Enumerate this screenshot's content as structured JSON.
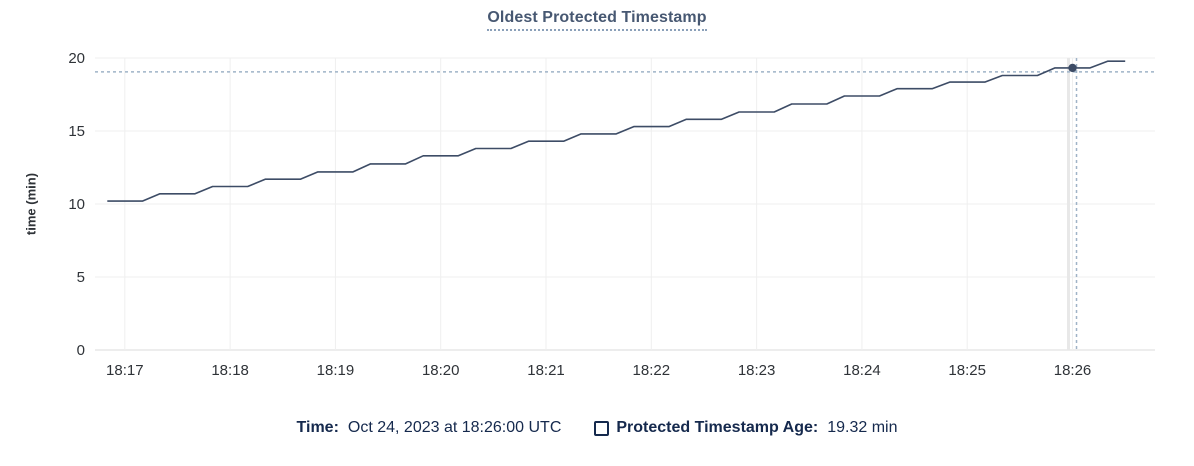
{
  "chart": {
    "title": "Oldest Protected Timestamp",
    "y_axis_label": "time (min)"
  },
  "legend": {
    "time_label": "Time:",
    "time_value": "Oct 24, 2023 at 18:26:00 UTC",
    "series_label": "Protected Timestamp Age:",
    "series_value": "19.32 min"
  },
  "colors": {
    "line": "#3d4c66",
    "grid": "#efefef",
    "axis_line": "#dbdbdb",
    "guide": "#e8e8e8",
    "crosshair": "#9fb3c7",
    "title": "#475872",
    "title_underline": "#8ba0b9",
    "tick_text": "#2f3338",
    "legend_text": "#15294d"
  },
  "chart_data": {
    "type": "line",
    "title": "Oldest Protected Timestamp",
    "xlabel": "",
    "ylabel": "time (min)",
    "ylim": [
      0,
      20
    ],
    "y_ticks": [
      0,
      5,
      10,
      15,
      20
    ],
    "x_ticks": [
      "18:17",
      "18:18",
      "18:19",
      "18:20",
      "18:21",
      "18:22",
      "18:23",
      "18:24",
      "18:25",
      "18:26"
    ],
    "x_range": [
      "18:16:43",
      "18:26:47"
    ],
    "grid": true,
    "legend_position": "bottom",
    "hover_point": {
      "t": "18:26:00",
      "v": 19.32
    },
    "series": [
      {
        "name": "Protected Timestamp Age",
        "unit": "min",
        "points": [
          {
            "t": "18:16:50",
            "v": 10.2
          },
          {
            "t": "18:17:00",
            "v": 10.2
          },
          {
            "t": "18:17:10",
            "v": 10.2
          },
          {
            "t": "18:17:20",
            "v": 10.7
          },
          {
            "t": "18:17:30",
            "v": 10.7
          },
          {
            "t": "18:17:40",
            "v": 10.7
          },
          {
            "t": "18:17:50",
            "v": 11.2
          },
          {
            "t": "18:18:00",
            "v": 11.2
          },
          {
            "t": "18:18:10",
            "v": 11.2
          },
          {
            "t": "18:18:20",
            "v": 11.7
          },
          {
            "t": "18:18:30",
            "v": 11.7
          },
          {
            "t": "18:18:40",
            "v": 11.7
          },
          {
            "t": "18:18:50",
            "v": 12.2
          },
          {
            "t": "18:19:00",
            "v": 12.2
          },
          {
            "t": "18:19:10",
            "v": 12.2
          },
          {
            "t": "18:19:20",
            "v": 12.75
          },
          {
            "t": "18:19:30",
            "v": 12.75
          },
          {
            "t": "18:19:40",
            "v": 12.75
          },
          {
            "t": "18:19:50",
            "v": 13.3
          },
          {
            "t": "18:20:00",
            "v": 13.3
          },
          {
            "t": "18:20:10",
            "v": 13.3
          },
          {
            "t": "18:20:20",
            "v": 13.8
          },
          {
            "t": "18:20:30",
            "v": 13.8
          },
          {
            "t": "18:20:40",
            "v": 13.8
          },
          {
            "t": "18:20:50",
            "v": 14.3
          },
          {
            "t": "18:21:00",
            "v": 14.3
          },
          {
            "t": "18:21:10",
            "v": 14.3
          },
          {
            "t": "18:21:20",
            "v": 14.8
          },
          {
            "t": "18:21:30",
            "v": 14.8
          },
          {
            "t": "18:21:40",
            "v": 14.8
          },
          {
            "t": "18:21:50",
            "v": 15.3
          },
          {
            "t": "18:22:00",
            "v": 15.3
          },
          {
            "t": "18:22:10",
            "v": 15.3
          },
          {
            "t": "18:22:20",
            "v": 15.8
          },
          {
            "t": "18:22:30",
            "v": 15.8
          },
          {
            "t": "18:22:40",
            "v": 15.8
          },
          {
            "t": "18:22:50",
            "v": 16.3
          },
          {
            "t": "18:23:00",
            "v": 16.3
          },
          {
            "t": "18:23:10",
            "v": 16.3
          },
          {
            "t": "18:23:20",
            "v": 16.85
          },
          {
            "t": "18:23:30",
            "v": 16.85
          },
          {
            "t": "18:23:40",
            "v": 16.85
          },
          {
            "t": "18:23:50",
            "v": 17.4
          },
          {
            "t": "18:24:00",
            "v": 17.4
          },
          {
            "t": "18:24:10",
            "v": 17.4
          },
          {
            "t": "18:24:20",
            "v": 17.9
          },
          {
            "t": "18:24:30",
            "v": 17.9
          },
          {
            "t": "18:24:40",
            "v": 17.9
          },
          {
            "t": "18:24:50",
            "v": 18.35
          },
          {
            "t": "18:25:00",
            "v": 18.35
          },
          {
            "t": "18:25:10",
            "v": 18.35
          },
          {
            "t": "18:25:20",
            "v": 18.8
          },
          {
            "t": "18:25:30",
            "v": 18.8
          },
          {
            "t": "18:25:40",
            "v": 18.8
          },
          {
            "t": "18:25:50",
            "v": 19.32
          },
          {
            "t": "18:26:00",
            "v": 19.32
          },
          {
            "t": "18:26:10",
            "v": 19.32
          },
          {
            "t": "18:26:20",
            "v": 19.78
          },
          {
            "t": "18:26:30",
            "v": 19.78
          }
        ]
      }
    ]
  }
}
